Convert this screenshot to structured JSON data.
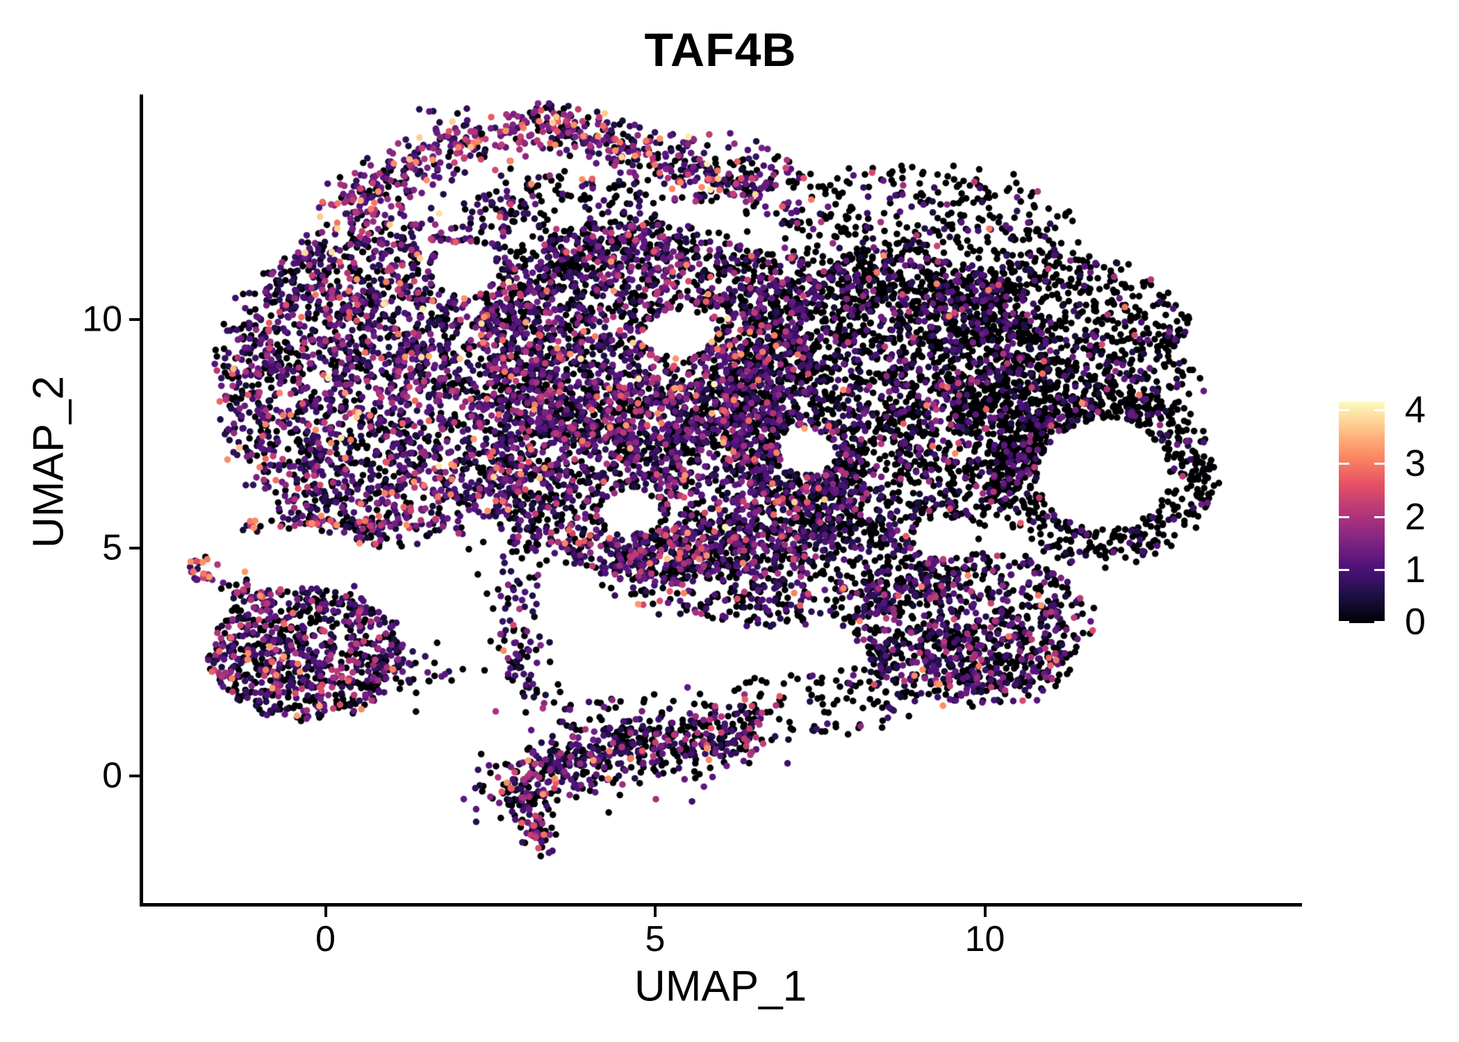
{
  "chart_data": {
    "type": "scatter",
    "title": "TAF4B",
    "xlabel": "UMAP_1",
    "ylabel": "UMAP_2",
    "xlim": [
      -2.8,
      14.8
    ],
    "ylim": [
      -2.8,
      14.9
    ],
    "grid": false,
    "x_ticks": [
      {
        "value": 0,
        "label": "0"
      },
      {
        "value": 5,
        "label": "5"
      },
      {
        "value": 10,
        "label": "10"
      }
    ],
    "y_ticks": [
      {
        "value": 0,
        "label": "0"
      },
      {
        "value": 5,
        "label": "5"
      },
      {
        "value": 10,
        "label": "10"
      }
    ],
    "legend": {
      "position": "right",
      "vmax": 4.16,
      "ticks": [
        {
          "value": 0,
          "label": "0"
        },
        {
          "value": 1,
          "label": "1"
        },
        {
          "value": 2,
          "label": "2"
        },
        {
          "value": 3,
          "label": "3"
        },
        {
          "value": 4,
          "label": "4"
        }
      ]
    },
    "colormap": {
      "name": "magma",
      "stops": [
        "#000004",
        "#1c1044",
        "#4f127b",
        "#812581",
        "#b5367a",
        "#e55064",
        "#fb8761",
        "#fec287",
        "#fcfdbf"
      ]
    },
    "expression_bins": [
      [
        0,
        0
      ],
      [
        0.35,
        1.3
      ],
      [
        1.3,
        2.25
      ],
      [
        2.25,
        3.3
      ],
      [
        3.3,
        4.1
      ]
    ],
    "clusters": [
      {
        "name": "main-left-lobe",
        "kind": "ellipse",
        "cx": 1.0,
        "cy": 8.6,
        "rx": 2.55,
        "ry": 3.5,
        "n": 2400,
        "weights": [
          0.38,
          0.44,
          0.13,
          0.04,
          0.01
        ]
      },
      {
        "name": "main-center-top",
        "kind": "ellipse",
        "cx": 4.9,
        "cy": 9.5,
        "rx": 2.5,
        "ry": 2.6,
        "n": 1900,
        "weights": [
          0.47,
          0.38,
          0.115,
          0.03,
          0.005
        ]
      },
      {
        "name": "main-center-bottom",
        "kind": "ellipse",
        "cx": 5.3,
        "cy": 6.4,
        "rx": 2.9,
        "ry": 2.1,
        "n": 1700,
        "weights": [
          0.44,
          0.4,
          0.12,
          0.035,
          0.005
        ]
      },
      {
        "name": "main-right-center",
        "kind": "ellipse",
        "cx": 8.6,
        "cy": 8.3,
        "rx": 2.6,
        "ry": 3.2,
        "n": 2300,
        "weights": [
          0.7,
          0.245,
          0.045,
          0.01,
          0
        ]
      },
      {
        "name": "main-far-right-top",
        "kind": "ellipse",
        "cx": 11.2,
        "cy": 9.0,
        "rx": 2.0,
        "ry": 2.4,
        "n": 900,
        "weights": [
          0.8,
          0.17,
          0.025,
          0.005,
          0
        ]
      },
      {
        "name": "right-ring",
        "kind": "ellipse",
        "cx": 11.8,
        "cy": 6.6,
        "rx": 1.65,
        "ry": 1.9,
        "n": 520,
        "weights": [
          0.86,
          0.12,
          0.015,
          0.005,
          0
        ]
      },
      {
        "name": "top-cap",
        "kind": "ellipse",
        "cx": 9.0,
        "cy": 11.7,
        "rx": 2.3,
        "ry": 1.7,
        "n": 520,
        "weights": [
          0.76,
          0.2,
          0.03,
          0.01,
          0
        ]
      },
      {
        "name": "bottom-band",
        "kind": "ellipse",
        "cx": 6.9,
        "cy": 4.5,
        "rx": 2.7,
        "ry": 1.2,
        "n": 650,
        "weights": [
          0.6,
          0.31,
          0.07,
          0.02,
          0
        ]
      },
      {
        "name": "bottom-right-lobe",
        "kind": "ellipse",
        "cx": 9.8,
        "cy": 3.4,
        "rx": 1.8,
        "ry": 1.5,
        "n": 650,
        "weights": [
          0.56,
          0.33,
          0.08,
          0.03,
          0
        ]
      },
      {
        "name": "protrusion-inner",
        "kind": "ellipse",
        "cx": 3.6,
        "cy": 12.1,
        "rx": 1.5,
        "ry": 1.1,
        "n": 260,
        "weights": [
          0.62,
          0.29,
          0.07,
          0.02,
          0
        ]
      },
      {
        "name": "bottom-left-cluster",
        "kind": "ellipse",
        "cx": -0.3,
        "cy": 2.7,
        "rx": 1.45,
        "ry": 1.45,
        "n": 760,
        "weights": [
          0.4,
          0.4,
          0.15,
          0.045,
          0.005
        ]
      },
      {
        "name": "bl-satellite",
        "kind": "ellipse",
        "cx": -1.85,
        "cy": 4.55,
        "rx": 0.22,
        "ry": 0.32,
        "n": 26,
        "weights": [
          0.15,
          0.3,
          0.35,
          0.2,
          0
        ]
      },
      {
        "name": "bm-upper-scatter",
        "kind": "ellipse",
        "cx": 4.8,
        "cy": 1.3,
        "rx": 1.3,
        "ry": 0.45,
        "n": 60,
        "weights": [
          0.55,
          0.35,
          0.08,
          0.02,
          0
        ]
      },
      {
        "name": "right-low-scatter",
        "kind": "ellipse",
        "cx": 7.6,
        "cy": 1.7,
        "rx": 1.5,
        "ry": 0.75,
        "n": 90,
        "weights": [
          0.7,
          0.25,
          0.04,
          0.01,
          0
        ]
      },
      {
        "name": "right-band",
        "kind": "ellipse",
        "cx": 9.7,
        "cy": 2.4,
        "rx": 1.6,
        "ry": 0.9,
        "n": 260,
        "weights": [
          0.58,
          0.32,
          0.08,
          0.02,
          0
        ]
      },
      {
        "name": "top-ridge-left",
        "kind": "path",
        "pts": [
          [
            0.2,
            12.2
          ],
          [
            1.1,
            13.1
          ],
          [
            2.1,
            13.9
          ],
          [
            3.2,
            14.25
          ],
          [
            4.3,
            13.95
          ]
        ],
        "sigma": 0.3,
        "n": 430,
        "weights": [
          0.17,
          0.4,
          0.28,
          0.12,
          0.03
        ]
      },
      {
        "name": "top-ridge-right",
        "kind": "path",
        "pts": [
          [
            4.3,
            13.95
          ],
          [
            5.2,
            13.45
          ],
          [
            6.1,
            13.0
          ],
          [
            6.9,
            13.1
          ]
        ],
        "sigma": 0.32,
        "n": 300,
        "weights": [
          0.33,
          0.4,
          0.2,
          0.06,
          0.01
        ]
      },
      {
        "name": "bl-trail",
        "kind": "path",
        "pts": [
          [
            -1.7,
            4.3
          ],
          [
            -1.2,
            4.0
          ],
          [
            -0.8,
            3.7
          ]
        ],
        "sigma": 0.12,
        "n": 34,
        "weights": [
          0.35,
          0.35,
          0.2,
          0.1,
          0
        ]
      },
      {
        "name": "left-strand",
        "kind": "path",
        "pts": [
          [
            -1.3,
            5.5
          ],
          [
            -0.2,
            5.55
          ],
          [
            1.15,
            5.5
          ]
        ],
        "sigma": 0.07,
        "n": 64,
        "weights": [
          0.35,
          0.35,
          0.22,
          0.08,
          0
        ]
      },
      {
        "name": "descending-strand",
        "kind": "path",
        "pts": [
          [
            2.7,
            5.2
          ],
          [
            2.9,
            4.0
          ],
          [
            3.0,
            2.9
          ],
          [
            3.1,
            1.6
          ]
        ],
        "sigma": 0.22,
        "n": 110,
        "weights": [
          0.5,
          0.35,
          0.12,
          0.03,
          0
        ]
      },
      {
        "name": "bl-bm-scatter",
        "kind": "path",
        "pts": [
          [
            0.9,
            2.3
          ],
          [
            1.9,
            2.2
          ]
        ],
        "sigma": 0.3,
        "n": 36,
        "weights": [
          0.5,
          0.35,
          0.12,
          0.03,
          0
        ]
      },
      {
        "name": "bottom-middle-chain",
        "kind": "path",
        "pts": [
          [
            2.6,
            -0.45
          ],
          [
            3.3,
            0.0
          ],
          [
            4.3,
            0.65
          ],
          [
            5.1,
            0.45
          ],
          [
            5.9,
            0.85
          ],
          [
            6.5,
            1.15
          ]
        ],
        "sigma": 0.33,
        "n": 560,
        "weights": [
          0.46,
          0.38,
          0.12,
          0.04,
          0
        ]
      },
      {
        "name": "bm-tail",
        "kind": "path",
        "pts": [
          [
            3.05,
            -0.5
          ],
          [
            3.2,
            -1.0
          ],
          [
            3.3,
            -1.55
          ]
        ],
        "sigma": 0.15,
        "n": 70,
        "weights": [
          0.46,
          0.38,
          0.13,
          0.03,
          0
        ]
      }
    ],
    "holes": [
      {
        "cx": 11.8,
        "cy": 6.6,
        "rx": 1.0,
        "ry": 1.2
      },
      {
        "cx": 5.35,
        "cy": 9.7,
        "rx": 0.5,
        "ry": 0.5
      },
      {
        "cx": 2.1,
        "cy": 11.1,
        "rx": 0.5,
        "ry": 0.6
      },
      {
        "cx": 4.6,
        "cy": 5.8,
        "rx": 0.45,
        "ry": 0.45
      },
      {
        "cx": 7.3,
        "cy": 7.1,
        "rx": 0.42,
        "ry": 0.5
      },
      {
        "cx": 9.4,
        "cy": 5.2,
        "rx": 0.5,
        "ry": 0.45
      }
    ]
  }
}
